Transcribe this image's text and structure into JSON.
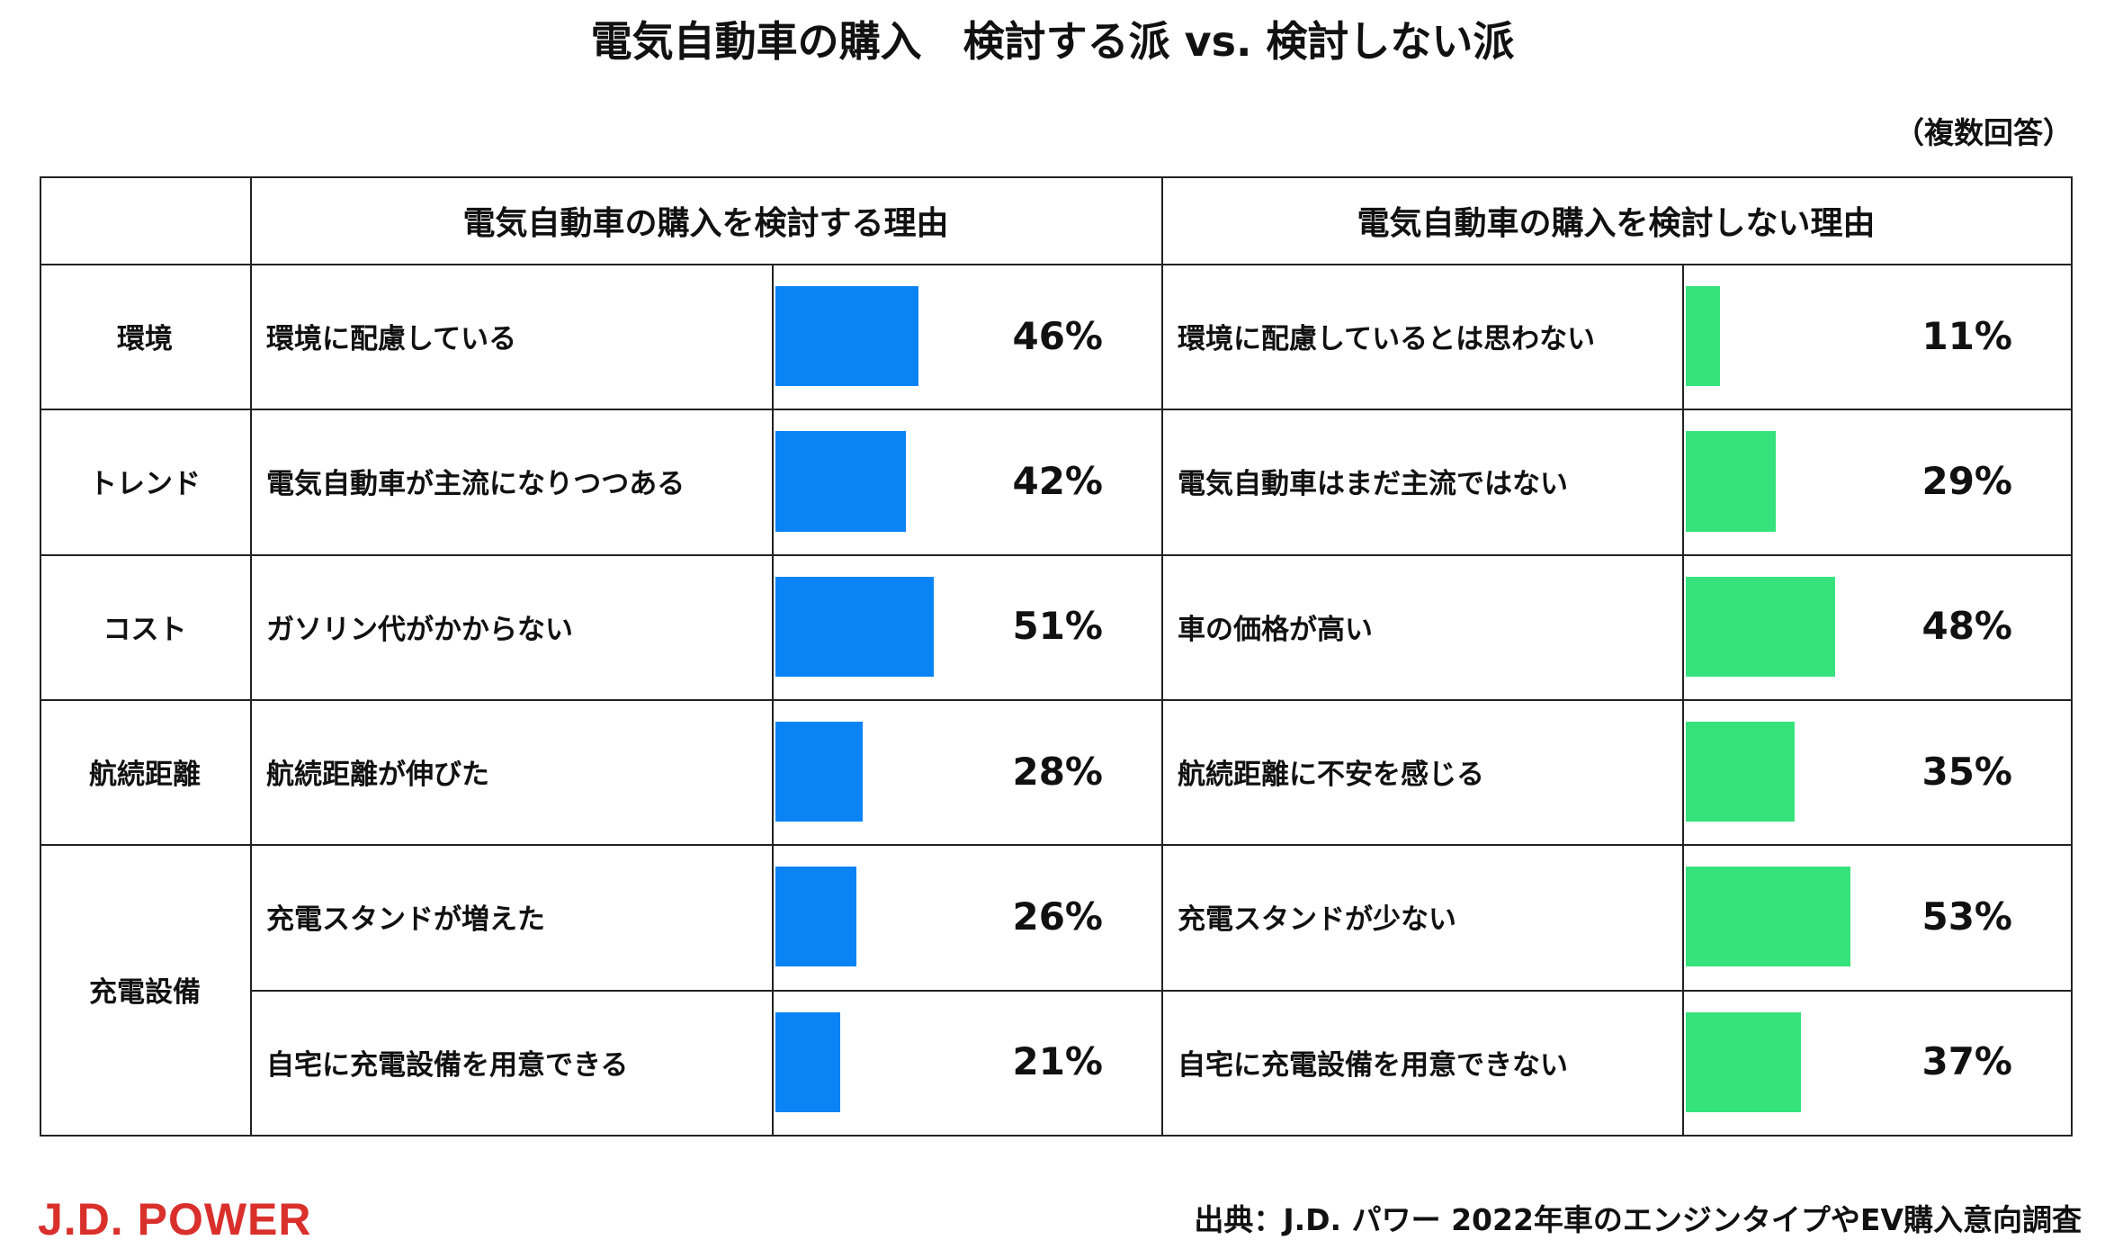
{
  "title": "電気自動車の購入　検討する派 vs. 検討しない派",
  "note": "（複数回答）",
  "chart_data": {
    "type": "bar",
    "orientation": "horizontal",
    "table_layout": true,
    "columns": [
      "電気自動車の購入を検討する理由",
      "電気自動車の購入を検討しない理由"
    ],
    "series_colors": [
      "#0a84f5",
      "#35e27c"
    ],
    "value_scale_max": 100,
    "categories": [
      {
        "label": "環境",
        "rows": [
          0
        ]
      },
      {
        "label": "トレンド",
        "rows": [
          1
        ]
      },
      {
        "label": "コスト",
        "rows": [
          2
        ]
      },
      {
        "label": "航続距離",
        "rows": [
          3
        ]
      },
      {
        "label": "充電設備",
        "rows": [
          4,
          5
        ]
      }
    ],
    "rows": [
      {
        "consider": {
          "label": "環境に配慮している",
          "value": 46
        },
        "not_consider": {
          "label": "環境に配慮しているとは思わない",
          "value": 11
        }
      },
      {
        "consider": {
          "label": "電気自動車が主流になりつつある",
          "value": 42
        },
        "not_consider": {
          "label": "電気自動車はまだ主流ではない",
          "value": 29
        }
      },
      {
        "consider": {
          "label": "ガソリン代がかからない",
          "value": 51
        },
        "not_consider": {
          "label": "車の価格が高い",
          "value": 48
        }
      },
      {
        "consider": {
          "label": "航続距離が伸びた",
          "value": 28
        },
        "not_consider": {
          "label": "航続距離に不安を感じる",
          "value": 35
        }
      },
      {
        "consider": {
          "label": "充電スタンドが増えた",
          "value": 26
        },
        "not_consider": {
          "label": "充電スタンドが少ない",
          "value": 53
        }
      },
      {
        "consider": {
          "label": "自宅に充電設備を用意できる",
          "value": 21
        },
        "not_consider": {
          "label": "自宅に充電設備を用意できない",
          "value": 37
        }
      }
    ],
    "unit": "%"
  },
  "footer": {
    "logo": "J.D. POWER",
    "logo_color": "#d9302c",
    "source": "出典：J.D. パワー 2022年車のエンジンタイプやEV購入意向調査"
  }
}
